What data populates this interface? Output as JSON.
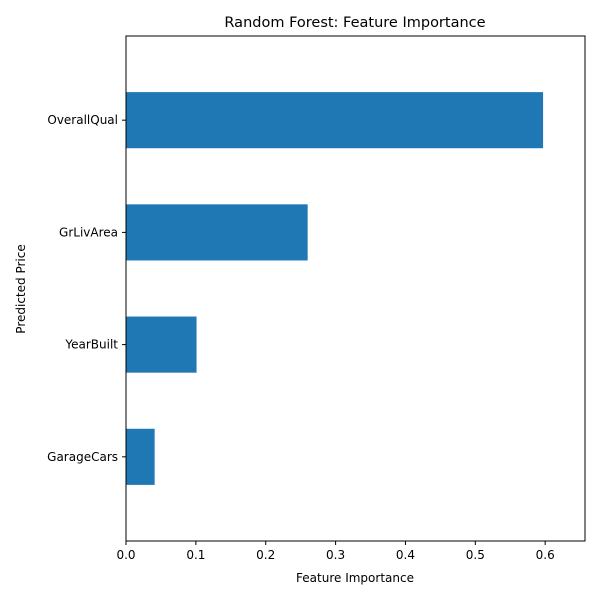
{
  "chart_data": {
    "type": "bar",
    "orientation": "horizontal",
    "title": "Random Forest: Feature Importance",
    "xlabel": "Feature Importance",
    "ylabel": "Predicted Price",
    "categories": [
      "GarageCars",
      "YearBuilt",
      "GrLivArea",
      "OverallQual"
    ],
    "values": [
      0.041,
      0.101,
      0.26,
      0.597
    ],
    "xlim": [
      0.0,
      0.657
    ],
    "xticks": [
      "0.0",
      "0.1",
      "0.2",
      "0.3",
      "0.4",
      "0.5",
      "0.6"
    ],
    "xtick_values": [
      0.0,
      0.1,
      0.2,
      0.3,
      0.4,
      0.5,
      0.6
    ],
    "grid": false,
    "bar_color": "#1f77b4"
  }
}
